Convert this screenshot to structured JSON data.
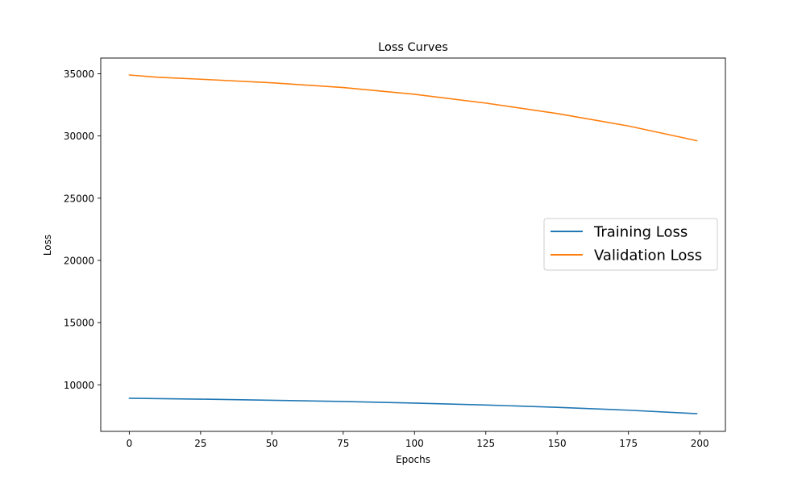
{
  "chart_data": {
    "type": "line",
    "title": "Loss Curves",
    "xlabel": "Epochs",
    "ylabel": "Loss",
    "xlim": [
      -10,
      209
    ],
    "ylim": [
      6260,
      36260
    ],
    "x_ticks": [
      0,
      25,
      50,
      75,
      100,
      125,
      150,
      175,
      200
    ],
    "y_ticks": [
      10000,
      15000,
      20000,
      25000,
      30000,
      35000
    ],
    "grid": false,
    "legend_position": "center-right",
    "series": [
      {
        "name": "Training Loss",
        "color": "#1f77b4",
        "x": [
          0,
          25,
          50,
          75,
          100,
          125,
          150,
          175,
          199
        ],
        "y": [
          8920,
          8850,
          8760,
          8660,
          8530,
          8380,
          8190,
          7960,
          7680
        ]
      },
      {
        "name": "Validation Loss",
        "color": "#ff7f0e",
        "x": [
          0,
          10,
          25,
          50,
          75,
          100,
          125,
          150,
          175,
          199
        ],
        "y": [
          34900,
          34720,
          34560,
          34270,
          33890,
          33350,
          32640,
          31800,
          30800,
          29620
        ]
      }
    ]
  }
}
